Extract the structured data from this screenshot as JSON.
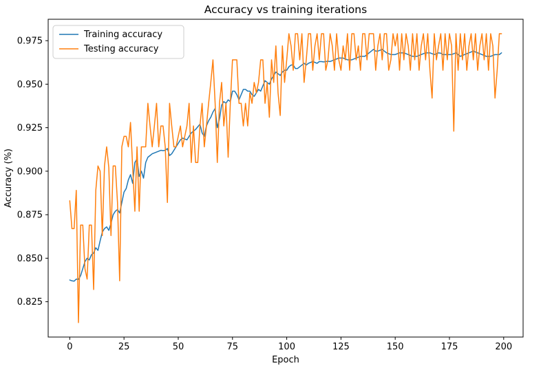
{
  "chart_data": {
    "type": "line",
    "title": "Accuracy vs training iterations",
    "xlabel": "Epoch",
    "ylabel": "Accuracy (%)",
    "xlim": [
      -9.95,
      208.95
    ],
    "ylim": [
      0.8047,
      0.9873
    ],
    "xticks": [
      0,
      25,
      50,
      75,
      100,
      125,
      150,
      175,
      200
    ],
    "yticks": [
      0.825,
      0.85,
      0.875,
      0.9,
      0.925,
      0.95,
      0.975
    ],
    "grid": false,
    "legend_position": "upper left",
    "colors": {
      "training": "#1f77b4",
      "testing": "#ff7f0e",
      "legend_border": "#cccccc",
      "spine": "#000000"
    },
    "series": [
      {
        "name": "Training accuracy",
        "color": "#1f77b4",
        "x_start": 0,
        "x_step": 1,
        "values": [
          0.8375,
          0.837,
          0.8368,
          0.838,
          0.8378,
          0.84,
          0.844,
          0.848,
          0.85,
          0.849,
          0.852,
          0.853,
          0.856,
          0.8545,
          0.86,
          0.865,
          0.867,
          0.868,
          0.866,
          0.87,
          0.875,
          0.877,
          0.878,
          0.876,
          0.882,
          0.888,
          0.89,
          0.895,
          0.898,
          0.893,
          0.905,
          0.907,
          0.897,
          0.9,
          0.896,
          0.905,
          0.908,
          0.909,
          0.91,
          0.9105,
          0.911,
          0.9115,
          0.912,
          0.9118,
          0.912,
          0.913,
          0.909,
          0.91,
          0.912,
          0.914,
          0.916,
          0.918,
          0.919,
          0.9185,
          0.918,
          0.92,
          0.922,
          0.923,
          0.924,
          0.9255,
          0.927,
          0.922,
          0.92,
          0.926,
          0.929,
          0.931,
          0.934,
          0.936,
          0.925,
          0.93,
          0.938,
          0.94,
          0.939,
          0.941,
          0.94,
          0.946,
          0.946,
          0.944,
          0.941,
          0.944,
          0.947,
          0.947,
          0.946,
          0.946,
          0.944,
          0.943,
          0.945,
          0.947,
          0.946,
          0.949,
          0.952,
          0.951,
          0.95,
          0.953,
          0.955,
          0.957,
          0.956,
          0.955,
          0.957,
          0.958,
          0.958,
          0.96,
          0.961,
          0.961,
          0.959,
          0.959,
          0.96,
          0.961,
          0.962,
          0.961,
          0.962,
          0.9625,
          0.963,
          0.9625,
          0.962,
          0.963,
          0.963,
          0.9628,
          0.963,
          0.9632,
          0.963,
          0.9635,
          0.964,
          0.9645,
          0.965,
          0.965,
          0.965,
          0.9645,
          0.964,
          0.964,
          0.964,
          0.9645,
          0.965,
          0.9655,
          0.966,
          0.966,
          0.966,
          0.967,
          0.968,
          0.969,
          0.97,
          0.969,
          0.969,
          0.9695,
          0.97,
          0.969,
          0.968,
          0.9675,
          0.967,
          0.967,
          0.967,
          0.9675,
          0.968,
          0.968,
          0.968,
          0.9675,
          0.967,
          0.9665,
          0.966,
          0.966,
          0.966,
          0.9665,
          0.967,
          0.9675,
          0.968,
          0.968,
          0.968,
          0.9675,
          0.967,
          0.9675,
          0.968,
          0.9678,
          0.967,
          0.967,
          0.967,
          0.967,
          0.967,
          0.9675,
          0.968,
          0.967,
          0.966,
          0.9665,
          0.967,
          0.9675,
          0.968,
          0.9685,
          0.969,
          0.9685,
          0.968,
          0.9675,
          0.967,
          0.9665,
          0.966,
          0.966,
          0.966,
          0.9665,
          0.967,
          0.967,
          0.967,
          0.968
        ]
      },
      {
        "name": "Testing accuracy",
        "color": "#ff7f0e",
        "x_start": 0,
        "x_step": 1,
        "values": [
          0.883,
          0.867,
          0.867,
          0.889,
          0.813,
          0.869,
          0.869,
          0.844,
          0.838,
          0.869,
          0.869,
          0.832,
          0.889,
          0.903,
          0.9,
          0.863,
          0.903,
          0.914,
          0.902,
          0.863,
          0.903,
          0.903,
          0.882,
          0.837,
          0.914,
          0.92,
          0.92,
          0.914,
          0.928,
          0.902,
          0.877,
          0.914,
          0.877,
          0.914,
          0.914,
          0.914,
          0.939,
          0.926,
          0.914,
          0.926,
          0.939,
          0.914,
          0.926,
          0.926,
          0.914,
          0.882,
          0.939,
          0.926,
          0.914,
          0.914,
          0.92,
          0.926,
          0.914,
          0.92,
          0.926,
          0.939,
          0.905,
          0.926,
          0.905,
          0.905,
          0.926,
          0.939,
          0.914,
          0.926,
          0.939,
          0.951,
          0.964,
          0.939,
          0.905,
          0.939,
          0.951,
          0.926,
          0.939,
          0.908,
          0.939,
          0.964,
          0.964,
          0.964,
          0.939,
          0.939,
          0.926,
          0.939,
          0.926,
          0.945,
          0.939,
          0.951,
          0.945,
          0.951,
          0.964,
          0.964,
          0.939,
          0.951,
          0.931,
          0.964,
          0.951,
          0.972,
          0.945,
          0.932,
          0.972,
          0.951,
          0.964,
          0.979,
          0.972,
          0.958,
          0.979,
          0.979,
          0.964,
          0.979,
          0.951,
          0.964,
          0.979,
          0.979,
          0.958,
          0.972,
          0.979,
          0.964,
          0.979,
          0.979,
          0.958,
          0.964,
          0.979,
          0.972,
          0.958,
          0.979,
          0.964,
          0.958,
          0.972,
          0.964,
          0.979,
          0.958,
          0.979,
          0.979,
          0.964,
          0.972,
          0.958,
          0.979,
          0.979,
          0.964,
          0.979,
          0.979,
          0.979,
          0.958,
          0.972,
          0.979,
          0.964,
          0.979,
          0.979,
          0.958,
          0.964,
          0.979,
          0.972,
          0.979,
          0.958,
          0.979,
          0.964,
          0.979,
          0.972,
          0.958,
          0.979,
          0.964,
          0.979,
          0.958,
          0.972,
          0.979,
          0.964,
          0.979,
          0.958,
          0.942,
          0.979,
          0.964,
          0.972,
          0.979,
          0.958,
          0.979,
          0.964,
          0.979,
          0.972,
          0.923,
          0.979,
          0.958,
          0.979,
          0.964,
          0.979,
          0.958,
          0.972,
          0.979,
          0.964,
          0.979,
          0.958,
          0.972,
          0.979,
          0.964,
          0.979,
          0.958,
          0.979,
          0.972,
          0.942,
          0.958,
          0.979,
          0.979
        ]
      }
    ]
  }
}
